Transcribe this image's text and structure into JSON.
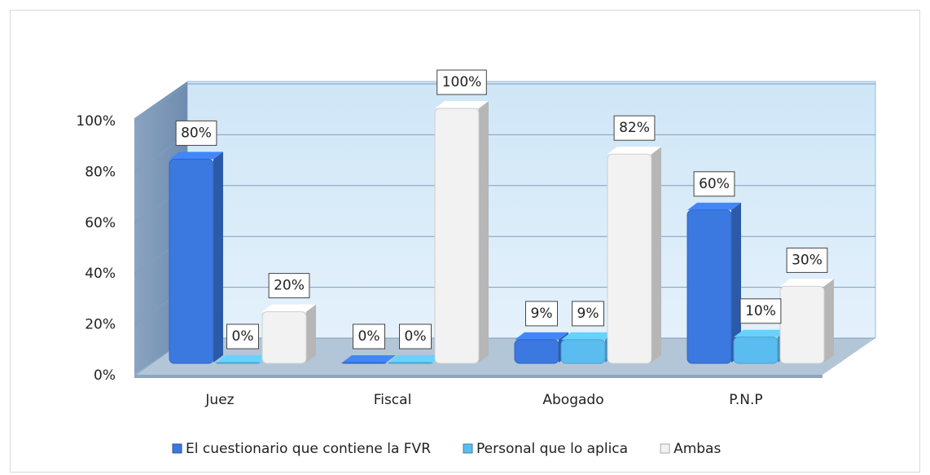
{
  "chart_data": {
    "type": "bar3d",
    "categories": [
      "Juez",
      "Fiscal",
      "Abogado",
      "P.N.P"
    ],
    "series": [
      {
        "name": "El cuestionario que contiene la FVR",
        "color": "#3b78e0",
        "values": [
          80,
          0,
          9,
          60
        ],
        "value_labels": [
          "80%",
          "0%",
          "9%",
          "60%"
        ]
      },
      {
        "name": "Personal que lo aplica",
        "color": "#5bbcf0",
        "values": [
          0,
          0,
          9,
          10
        ],
        "value_labels": [
          "0%",
          "0%",
          "9%",
          "10%"
        ]
      },
      {
        "name": "Ambas",
        "color": "#f2f2f2",
        "values": [
          20,
          100,
          82,
          30
        ],
        "value_labels": [
          "20%",
          "100%",
          "82%",
          "30%"
        ]
      }
    ],
    "ylim": [
      0,
      100
    ],
    "yticks": [
      {
        "value": 0,
        "label": "0%"
      },
      {
        "value": 20,
        "label": "20%"
      },
      {
        "value": 40,
        "label": "40%"
      },
      {
        "value": 60,
        "label": "60%"
      },
      {
        "value": 80,
        "label": "80%"
      },
      {
        "value": 100,
        "label": "100%"
      }
    ],
    "grid": true,
    "legend": "bottom"
  }
}
